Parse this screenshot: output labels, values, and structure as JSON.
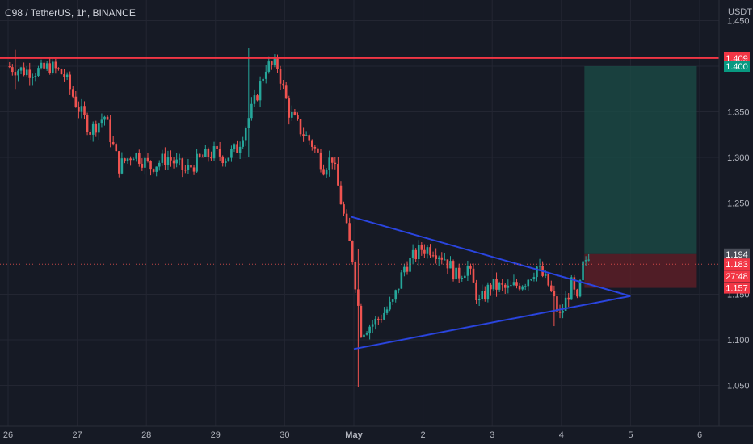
{
  "header": {
    "title": "C98 / TetherUS, 1h, BINANCE"
  },
  "colors": {
    "background": "#161a25",
    "up": "#26a69a",
    "down": "#ef5350",
    "resistance": "#f23645",
    "triangle": "#2a45e0",
    "target_zone": "#1b4d47",
    "stop_zone": "#5a1f27",
    "grid": "#232632",
    "text": "#b2b5be"
  },
  "chart_data": {
    "type": "candlestick",
    "title": "C98 / TetherUS, 1h, BINANCE",
    "currency": "USDT",
    "x_ticks": [
      "26",
      "27",
      "28",
      "29",
      "30",
      "May",
      "2",
      "3",
      "4",
      "5",
      "6"
    ],
    "y_ticks": [
      "1.450",
      "1.400",
      "1.350",
      "1.300",
      "1.250",
      "1.150",
      "1.100",
      "1.050"
    ],
    "y_range": [
      1.03,
      1.465
    ],
    "x_range": [
      "Apr 26 00:00",
      "May 6 05:00"
    ],
    "resistance_level": 1.409,
    "triangle": {
      "upper_line": [
        [
          "Apr 30 23:00",
          1.235
        ],
        [
          "May 5 00:00",
          1.148
        ]
      ],
      "lower_line": [
        [
          "May 1 00:00",
          1.09
        ],
        [
          "May 5 00:00",
          1.148
        ]
      ]
    },
    "position": {
      "target": 1.4,
      "entry": 1.194,
      "stop": 1.157,
      "start": "May 4 08:00",
      "end": "May 5 23:00"
    },
    "price_tags": [
      {
        "value": "1.409",
        "kind": "resistance"
      },
      {
        "value": "1.400",
        "kind": "target"
      },
      {
        "value": "1.194",
        "kind": "entry"
      },
      {
        "value": "1.183",
        "kind": "last"
      },
      {
        "value": "27:48",
        "kind": "countdown"
      },
      {
        "value": "1.157",
        "kind": "stop"
      }
    ],
    "close_path": [
      [
        "Apr 26 00:00",
        1.4
      ],
      [
        "Apr 26 06:00",
        1.395
      ],
      [
        "Apr 26 12:00",
        1.395
      ],
      [
        "Apr 26 15:00",
        1.4
      ],
      [
        "Apr 26 20:00",
        1.39
      ],
      [
        "Apr 27 00:00",
        1.36
      ],
      [
        "Apr 27 05:00",
        1.33
      ],
      [
        "Apr 27 10:00",
        1.345
      ],
      [
        "Apr 27 15:00",
        1.29
      ],
      [
        "Apr 27 20:00",
        1.305
      ],
      [
        "Apr 28 02:00",
        1.29
      ],
      [
        "Apr 28 08:00",
        1.3
      ],
      [
        "Apr 28 14:00",
        1.285
      ],
      [
        "Apr 28 20:00",
        1.3
      ],
      [
        "Apr 29 00:00",
        1.305
      ],
      [
        "Apr 29 04:00",
        1.3
      ],
      [
        "Apr 29 08:00",
        1.31
      ],
      [
        "Apr 29 14:00",
        1.36
      ],
      [
        "Apr 29 18:00",
        1.4
      ],
      [
        "Apr 29 22:00",
        1.4
      ],
      [
        "Apr 30 02:00",
        1.35
      ],
      [
        "Apr 30 06:00",
        1.33
      ],
      [
        "Apr 30 10:00",
        1.315
      ],
      [
        "Apr 30 14:00",
        1.29
      ],
      [
        "Apr 30 17:00",
        1.3
      ],
      [
        "Apr 30 22:00",
        1.22
      ],
      [
        "May 1 00:00",
        1.19
      ],
      [
        "May 1 03:00",
        1.11
      ],
      [
        "May 1 08:00",
        1.12
      ],
      [
        "May 1 14:00",
        1.14
      ],
      [
        "May 1 18:00",
        1.18
      ],
      [
        "May 2 00:00",
        1.2
      ],
      [
        "May 2 04:00",
        1.2
      ],
      [
        "May 2 08:00",
        1.19
      ],
      [
        "May 2 12:00",
        1.17
      ],
      [
        "May 2 16:00",
        1.18
      ],
      [
        "May 2 20:00",
        1.14
      ],
      [
        "May 3 00:00",
        1.16
      ],
      [
        "May 3 06:00",
        1.155
      ],
      [
        "May 3 12:00",
        1.165
      ],
      [
        "May 3 16:00",
        1.18
      ],
      [
        "May 3 20:00",
        1.16
      ],
      [
        "May 4 00:00",
        1.125
      ],
      [
        "May 4 04:00",
        1.16
      ],
      [
        "May 4 06:00",
        1.14
      ],
      [
        "May 4 08:00",
        1.18
      ],
      [
        "May 4 09:00",
        1.188
      ]
    ]
  }
}
